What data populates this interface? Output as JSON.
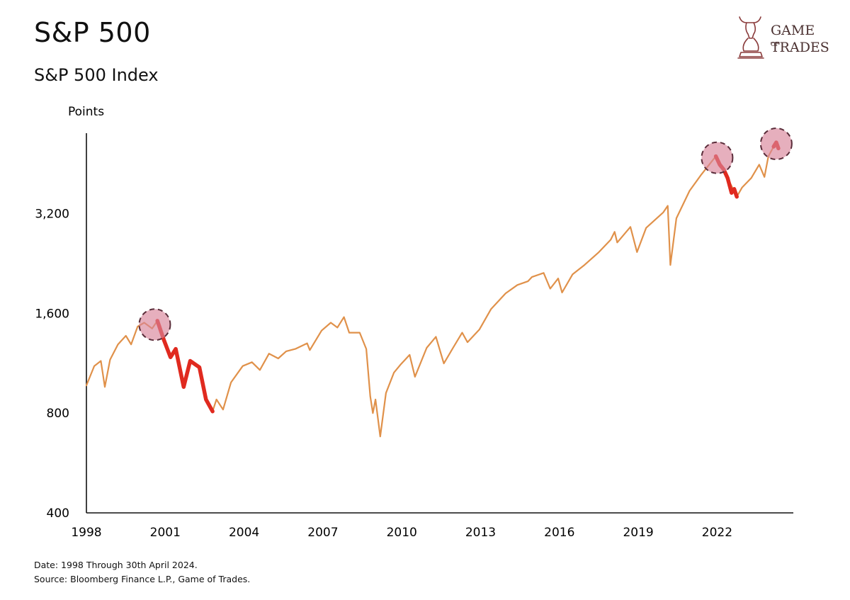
{
  "header": {
    "title": "S&P 500",
    "subtitle": "S&P 500 Index"
  },
  "logo": {
    "line1": "GAME",
    "of": "OF",
    "line2": "TRADES",
    "brand_color": "#8a3b3b"
  },
  "footer": {
    "date_note": "Date: 1998 Through 30th April 2024.",
    "source_note": "Source: Bloomberg Finance L.P., Game of Trades."
  },
  "chart_data": {
    "type": "line",
    "title": "S&P 500",
    "subtitle": "S&P 500 Index",
    "ylabel": "Points",
    "xlabel": "",
    "y_scale": "log",
    "ylim": [
      400,
      5600
    ],
    "xlim": [
      1998,
      2024.9
    ],
    "x_ticks": [
      1998,
      2001,
      2004,
      2007,
      2010,
      2013,
      2016,
      2019,
      2022
    ],
    "x_tick_labels": [
      "1998",
      "2001",
      "2004",
      "2007",
      "2010",
      "2013",
      "2016",
      "2019",
      "2022"
    ],
    "y_ticks": [
      400,
      800,
      1600,
      3200
    ],
    "y_tick_labels": [
      "400",
      "800",
      "1,600",
      "3,200"
    ],
    "grid": false,
    "series": [
      {
        "color": "#e0914a",
        "points": [
          [
            1998.0,
            970
          ],
          [
            1998.3,
            1110
          ],
          [
            1998.55,
            1150
          ],
          [
            1998.7,
            960
          ],
          [
            1998.9,
            1160
          ],
          [
            1999.2,
            1290
          ],
          [
            1999.5,
            1370
          ],
          [
            1999.7,
            1290
          ],
          [
            1999.95,
            1460
          ],
          [
            2000.2,
            1500
          ],
          [
            2000.5,
            1440
          ],
          [
            2000.7,
            1520
          ],
          [
            2000.95,
            1330
          ],
          [
            2001.2,
            1180
          ],
          [
            2001.4,
            1250
          ],
          [
            2001.7,
            960
          ],
          [
            2001.95,
            1150
          ],
          [
            2002.3,
            1100
          ],
          [
            2002.55,
            880
          ],
          [
            2002.8,
            810
          ],
          [
            2002.95,
            880
          ],
          [
            2003.2,
            820
          ],
          [
            2003.5,
            990
          ],
          [
            2003.95,
            1110
          ],
          [
            2004.3,
            1140
          ],
          [
            2004.6,
            1080
          ],
          [
            2004.95,
            1210
          ],
          [
            2005.3,
            1170
          ],
          [
            2005.6,
            1230
          ],
          [
            2005.95,
            1250
          ],
          [
            2006.4,
            1300
          ],
          [
            2006.5,
            1240
          ],
          [
            2006.95,
            1420
          ],
          [
            2007.3,
            1500
          ],
          [
            2007.55,
            1450
          ],
          [
            2007.8,
            1560
          ],
          [
            2008.0,
            1400
          ],
          [
            2008.4,
            1400
          ],
          [
            2008.65,
            1250
          ],
          [
            2008.8,
            900
          ],
          [
            2008.9,
            800
          ],
          [
            2009.0,
            880
          ],
          [
            2009.18,
            680
          ],
          [
            2009.4,
            920
          ],
          [
            2009.7,
            1060
          ],
          [
            2009.95,
            1120
          ],
          [
            2010.3,
            1200
          ],
          [
            2010.5,
            1030
          ],
          [
            2010.95,
            1260
          ],
          [
            2011.3,
            1360
          ],
          [
            2011.6,
            1130
          ],
          [
            2011.95,
            1260
          ],
          [
            2012.3,
            1400
          ],
          [
            2012.5,
            1310
          ],
          [
            2012.95,
            1430
          ],
          [
            2013.4,
            1650
          ],
          [
            2013.95,
            1840
          ],
          [
            2014.4,
            1950
          ],
          [
            2014.8,
            2000
          ],
          [
            2014.95,
            2060
          ],
          [
            2015.4,
            2120
          ],
          [
            2015.65,
            1900
          ],
          [
            2015.95,
            2040
          ],
          [
            2016.1,
            1850
          ],
          [
            2016.5,
            2100
          ],
          [
            2016.95,
            2240
          ],
          [
            2017.5,
            2450
          ],
          [
            2017.95,
            2670
          ],
          [
            2018.1,
            2820
          ],
          [
            2018.2,
            2620
          ],
          [
            2018.7,
            2920
          ],
          [
            2018.95,
            2450
          ],
          [
            2019.3,
            2900
          ],
          [
            2019.95,
            3230
          ],
          [
            2020.12,
            3380
          ],
          [
            2020.22,
            2240
          ],
          [
            2020.45,
            3100
          ],
          [
            2020.95,
            3750
          ],
          [
            2021.4,
            4200
          ],
          [
            2021.95,
            4770
          ],
          [
            2022.4,
            4100
          ],
          [
            2022.75,
            3600
          ],
          [
            2022.95,
            3840
          ],
          [
            2023.3,
            4100
          ],
          [
            2023.6,
            4500
          ],
          [
            2023.8,
            4130
          ],
          [
            2023.95,
            4770
          ],
          [
            2024.15,
            5100
          ],
          [
            2024.25,
            5250
          ],
          [
            2024.33,
            5040
          ]
        ]
      },
      {
        "color": "#e02a1f",
        "points": [
          [
            2000.7,
            1520
          ],
          [
            2000.95,
            1330
          ],
          [
            2001.2,
            1180
          ],
          [
            2001.4,
            1250
          ],
          [
            2001.7,
            960
          ],
          [
            2001.95,
            1150
          ],
          [
            2002.3,
            1100
          ],
          [
            2002.55,
            880
          ],
          [
            2002.8,
            810
          ]
        ]
      },
      {
        "color": "#e02a1f",
        "points": [
          [
            2021.95,
            4770
          ],
          [
            2022.1,
            4500
          ],
          [
            2022.25,
            4350
          ],
          [
            2022.4,
            4100
          ],
          [
            2022.55,
            3700
          ],
          [
            2022.65,
            3800
          ],
          [
            2022.75,
            3600
          ]
        ]
      },
      {
        "color": "#e02a1f",
        "points": [
          [
            2024.15,
            5100
          ],
          [
            2024.25,
            5250
          ],
          [
            2024.33,
            5040
          ]
        ]
      }
    ],
    "highlights": [
      {
        "x": 2000.6,
        "y": 1480,
        "color": "#d9849a"
      },
      {
        "x": 2022.0,
        "y": 4720,
        "color": "#d9849a"
      },
      {
        "x": 2024.25,
        "y": 5200,
        "color": "#d9849a"
      }
    ]
  }
}
